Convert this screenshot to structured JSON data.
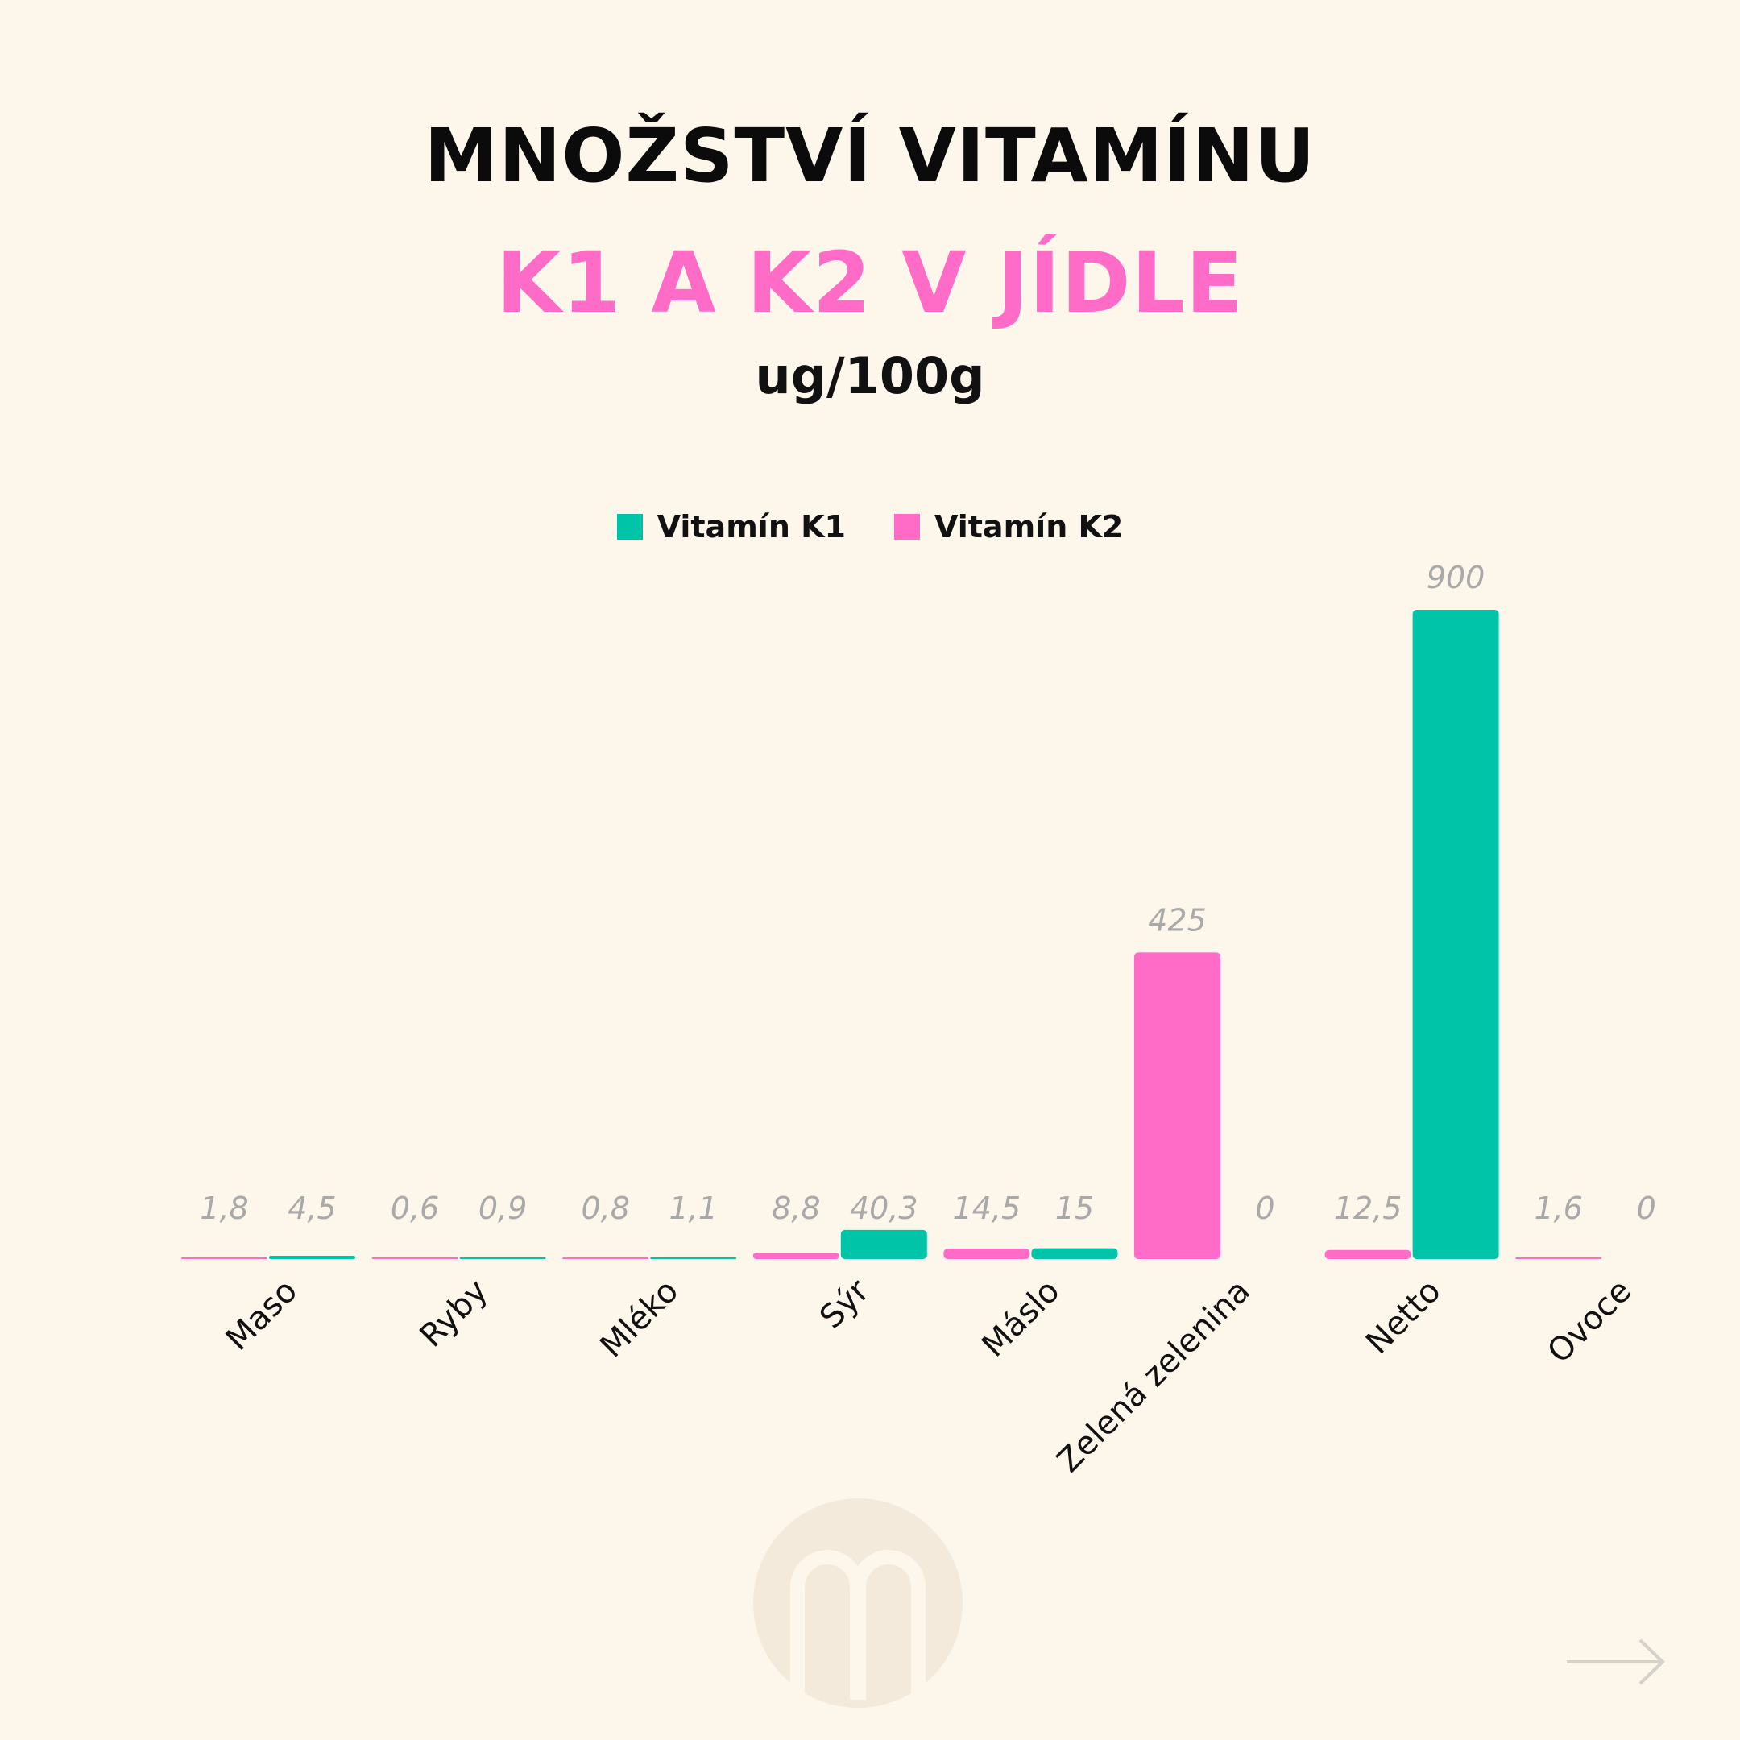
{
  "header": {
    "title_line1": "MNOŽSTVÍ VITAMÍNU",
    "title_line2": "K1 A K2 V JÍDLE",
    "unit": "ug/100g"
  },
  "colors": {
    "background": "#fdf6ea",
    "vitamin_k1": "#00c4a7",
    "vitamin_k2": "#ff6cc8",
    "value_label": "#a9a9a9",
    "title_accent": "#ff6cc8"
  },
  "chart_data": {
    "type": "bar",
    "title": "MNOŽSTVÍ VITAMÍNU K1 A K2 V JÍDLE",
    "subtitle": "ug/100g",
    "xlabel": "",
    "ylabel": "",
    "ylim": [
      0,
      900
    ],
    "grid": false,
    "legend_position": "top-center",
    "categories": [
      "Maso",
      "Ryby",
      "Mléko",
      "Sýr",
      "Máslo",
      "Zelená zelenina",
      "Netto",
      "Ovoce"
    ],
    "series": [
      {
        "name": "Vitamín K2",
        "color": "#ff6cc8",
        "values": [
          1.8,
          0.6,
          0.8,
          8.8,
          14.5,
          425,
          12.5,
          1.6
        ],
        "labels": [
          "1,8",
          "0,6",
          "0,8",
          "8,8",
          "14,5",
          "425",
          "12,5",
          "1,6"
        ]
      },
      {
        "name": "Vitamín K1",
        "color": "#00c4a7",
        "values": [
          4.5,
          0.9,
          1.1,
          40.3,
          15,
          0,
          900,
          0
        ],
        "labels": [
          "4,5",
          "0,9",
          "1,1",
          "40,3",
          "15",
          "0",
          "900",
          "0"
        ]
      }
    ],
    "legend": [
      "Vitamín K1",
      "Vitamín K2"
    ]
  }
}
